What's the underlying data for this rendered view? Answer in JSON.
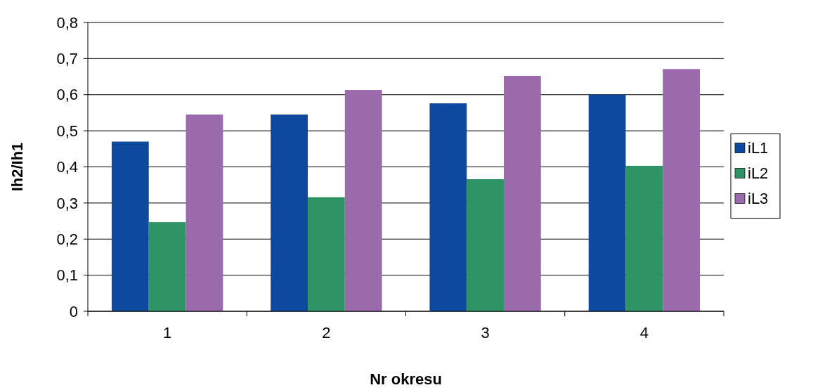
{
  "chart_data": {
    "type": "bar",
    "xlabel": "Nr okresu",
    "ylabel": "Ih2/Ih1",
    "categories": [
      "1",
      "2",
      "3",
      "4"
    ],
    "series": [
      {
        "name": "iL1",
        "color": "#0d4a9e",
        "values": [
          0.47,
          0.545,
          0.576,
          0.6
        ]
      },
      {
        "name": "iL2",
        "color": "#2e9466",
        "values": [
          0.247,
          0.316,
          0.366,
          0.403
        ]
      },
      {
        "name": "iL3",
        "color": "#9a6aad",
        "values": [
          0.545,
          0.613,
          0.652,
          0.671
        ]
      }
    ],
    "ylim": [
      0,
      0.8
    ],
    "yticks": [
      0,
      {
        "value": 0.1,
        "label": "0,1"
      },
      {
        "value": 0.2,
        "label": "0,2"
      },
      {
        "value": 0.3,
        "label": "0,3"
      },
      {
        "value": 0.4,
        "label": "0,4"
      },
      {
        "value": 0.5,
        "label": "0,5"
      },
      {
        "value": 0.6,
        "label": "0,6"
      },
      {
        "value": 0.7,
        "label": "0,7"
      },
      {
        "value": 0.8,
        "label": "0,8"
      }
    ],
    "grid": "y",
    "legend": "right"
  }
}
